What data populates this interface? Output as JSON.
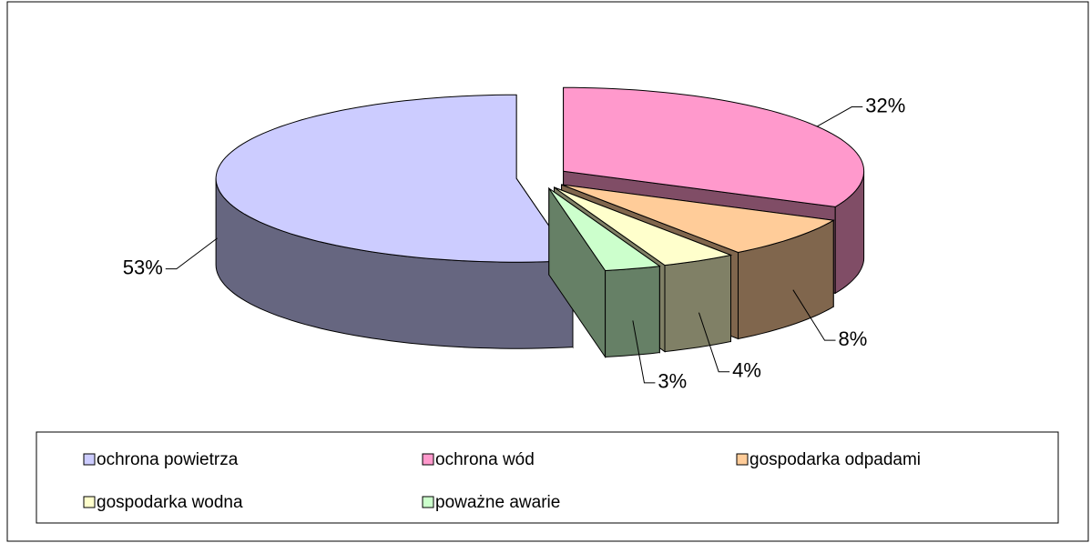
{
  "chart_data": {
    "type": "pie",
    "three_d": true,
    "exploded": true,
    "categories": [
      "ochrona powietrza",
      "ochrona wód",
      "gospodarka odpadami",
      "gospodarka wodna",
      "poważne awarie"
    ],
    "values": [
      53,
      32,
      8,
      4,
      3
    ],
    "value_labels": [
      "53%",
      "32%",
      "8%",
      "4%",
      "3%"
    ],
    "colors": [
      "#ccccff",
      "#ff99cc",
      "#ffcc99",
      "#ffffcc",
      "#ccffcc"
    ],
    "legend": "bottom"
  }
}
